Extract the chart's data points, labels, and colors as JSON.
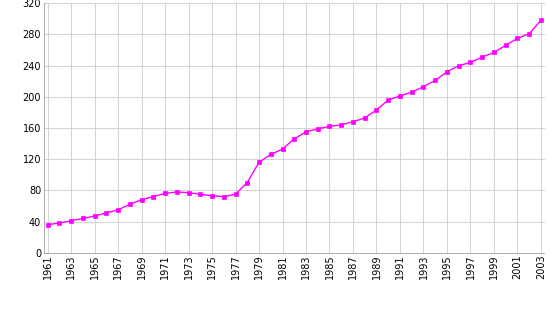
{
  "years": [
    1961,
    1962,
    1963,
    1964,
    1965,
    1966,
    1967,
    1968,
    1969,
    1970,
    1971,
    1972,
    1973,
    1974,
    1975,
    1976,
    1977,
    1978,
    1979,
    1980,
    1981,
    1982,
    1983,
    1984,
    1985,
    1986,
    1987,
    1988,
    1989,
    1990,
    1991,
    1992,
    1993,
    1994,
    1995,
    1996,
    1997,
    1998,
    1999,
    2000,
    2001,
    2002,
    2003
  ],
  "values": [
    36,
    38,
    41,
    44,
    47,
    51,
    55,
    62,
    68,
    72,
    76,
    78,
    77,
    75,
    73,
    72,
    75,
    90,
    116,
    126,
    133,
    146,
    155,
    159,
    162,
    164,
    168,
    173,
    183,
    196,
    201,
    206,
    213,
    221,
    232,
    240,
    244,
    251,
    257,
    266,
    275,
    281,
    298
  ],
  "line_color": "#ff00ff",
  "marker_color": "#ff00ff",
  "fig_bg_color": "#ffffff",
  "plot_bg_color": "#ffffff",
  "ylim": [
    0,
    320
  ],
  "yticks": [
    0,
    40,
    80,
    120,
    160,
    200,
    240,
    280,
    320
  ],
  "grid_color": "#cccccc"
}
